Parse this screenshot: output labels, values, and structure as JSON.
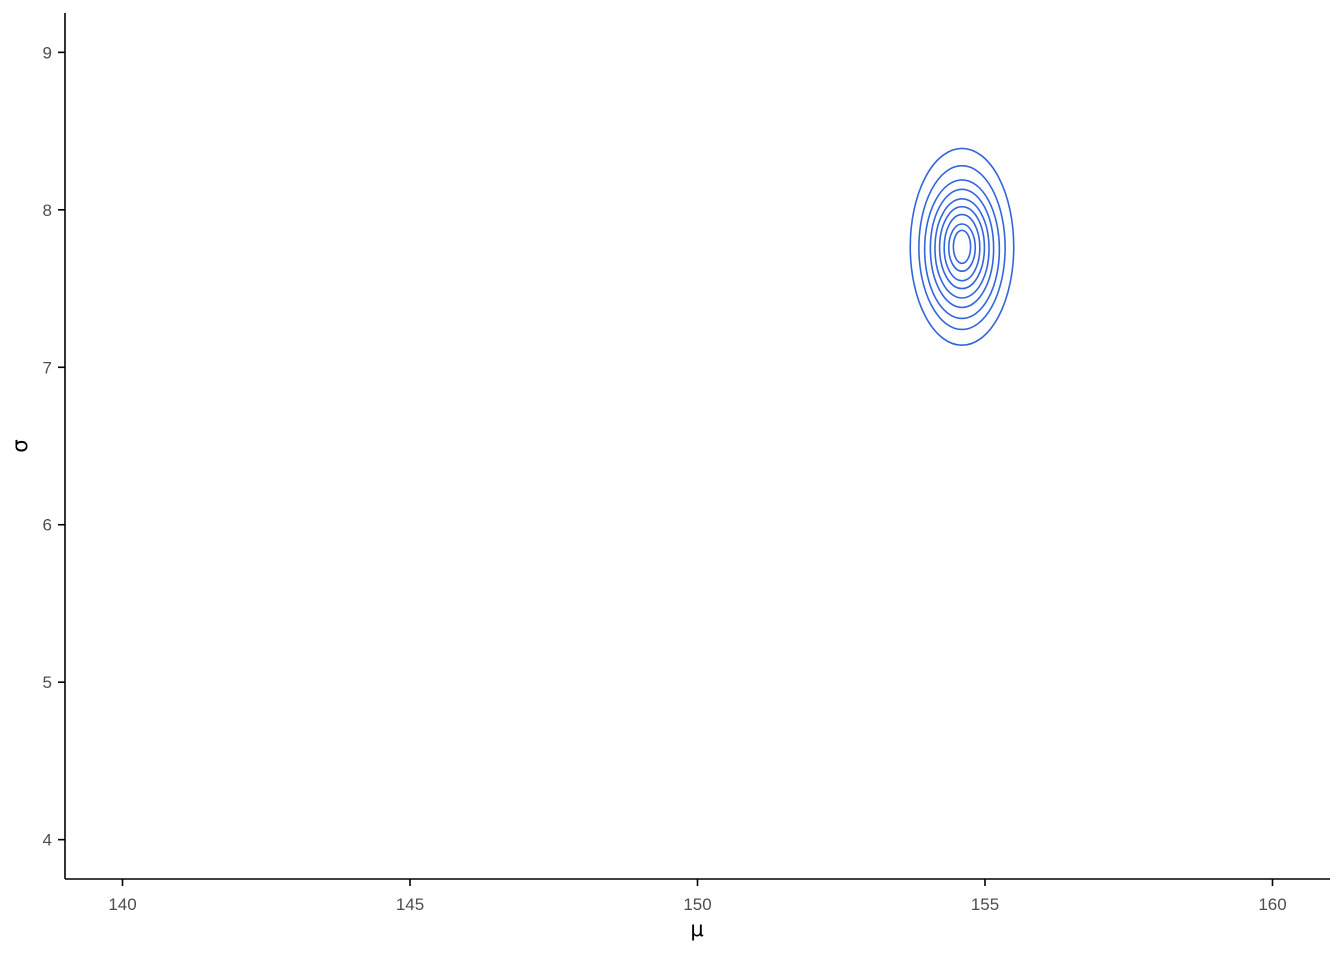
{
  "chart_data": {
    "type": "contour",
    "xlabel": "μ",
    "ylabel": "σ",
    "xlim": [
      139,
      161
    ],
    "ylim": [
      3.75,
      9.25
    ],
    "x_ticks": [
      140,
      145,
      150,
      155,
      160
    ],
    "x_tick_labels": [
      "140",
      "145",
      "150",
      "155",
      "160"
    ],
    "y_ticks": [
      4,
      5,
      6,
      7,
      8,
      9
    ],
    "y_tick_labels": [
      "4",
      "5",
      "6",
      "7",
      "8",
      "9"
    ],
    "grid": false,
    "line_color": "#3366dd",
    "contour_center": {
      "mu": 154.6,
      "sigma": 7.76
    },
    "contour_levels": [
      {
        "level": 1,
        "mu_range": [
          153.7,
          155.5
        ],
        "sigma_range": [
          7.14,
          8.39
        ]
      },
      {
        "level": 2,
        "mu_range": [
          153.85,
          155.35
        ],
        "sigma_range": [
          7.24,
          8.28
        ]
      },
      {
        "level": 3,
        "mu_range": [
          153.95,
          155.25
        ],
        "sigma_range": [
          7.31,
          8.19
        ]
      },
      {
        "level": 4,
        "mu_range": [
          154.05,
          155.15
        ],
        "sigma_range": [
          7.38,
          8.13
        ]
      },
      {
        "level": 5,
        "mu_range": [
          154.13,
          155.07
        ],
        "sigma_range": [
          7.44,
          8.07
        ]
      },
      {
        "level": 6,
        "mu_range": [
          154.21,
          154.99
        ],
        "sigma_range": [
          7.5,
          8.02
        ]
      },
      {
        "level": 7,
        "mu_range": [
          154.29,
          154.91
        ],
        "sigma_range": [
          7.55,
          7.97
        ]
      },
      {
        "level": 8,
        "mu_range": [
          154.37,
          154.83
        ],
        "sigma_range": [
          7.61,
          7.91
        ]
      },
      {
        "level": 9,
        "mu_range": [
          154.45,
          154.75
        ],
        "sigma_range": [
          7.66,
          7.87
        ]
      }
    ]
  }
}
